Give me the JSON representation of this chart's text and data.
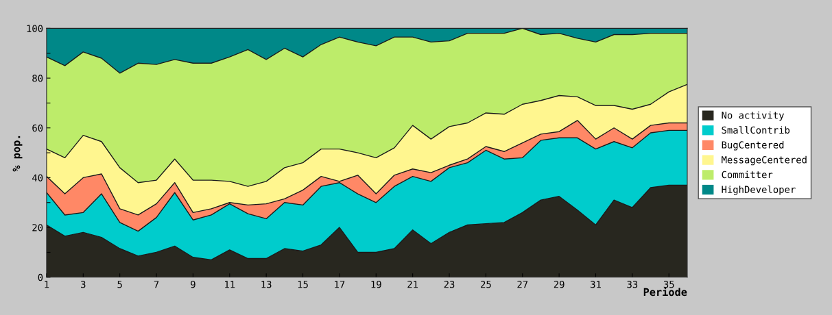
{
  "chart_data": {
    "type": "area",
    "stacked": true,
    "xlabel": "Periode",
    "ylabel": "% pop.",
    "x": [
      1,
      2,
      3,
      4,
      5,
      6,
      7,
      8,
      9,
      10,
      11,
      12,
      13,
      14,
      15,
      16,
      17,
      18,
      19,
      20,
      21,
      22,
      23,
      24,
      25,
      26,
      27,
      28,
      29,
      30,
      31,
      32,
      33,
      34,
      35,
      36
    ],
    "xlim": [
      1,
      36
    ],
    "xticks": [
      1,
      3,
      5,
      7,
      9,
      11,
      13,
      15,
      17,
      19,
      21,
      23,
      25,
      27,
      29,
      31,
      33,
      35
    ],
    "ylim": [
      0,
      100
    ],
    "yticks": [
      0,
      {
        "value": 10,
        "label": null
      },
      20,
      {
        "value": 30,
        "label": null
      },
      40,
      {
        "value": 50,
        "label": null
      },
      60,
      {
        "value": 70,
        "label": null
      },
      80,
      {
        "value": 90,
        "label": null
      },
      100
    ],
    "grid": false,
    "legend": "right",
    "series": [
      {
        "name": "No activity",
        "color": "#28271f",
        "values": [
          21,
          16.5,
          18,
          16,
          11.5,
          8.5,
          10,
          12.5,
          8,
          7,
          11,
          7.5,
          7.5,
          11.5,
          10.5,
          13,
          20,
          10,
          10,
          11.5,
          19,
          13.5,
          18,
          21,
          21.5,
          22,
          26,
          31,
          32.5,
          27,
          21,
          31,
          28,
          36,
          37,
          37
        ]
      },
      {
        "name": "SmallContrib",
        "color": "#00cccc",
        "values": [
          13,
          8.5,
          8,
          17.5,
          10.5,
          10,
          14,
          21.5,
          15,
          18,
          18.5,
          18,
          16,
          18.5,
          18.5,
          23.5,
          18,
          23.5,
          20,
          25,
          21.5,
          25,
          26,
          25,
          29.5,
          25.5,
          22,
          24,
          23.5,
          29,
          30.5,
          23.5,
          24,
          22,
          22,
          22
        ]
      },
      {
        "name": "BugCentered",
        "color": "#ff8866",
        "values": [
          6.5,
          8.5,
          14,
          8,
          5.5,
          6.5,
          5.5,
          4,
          3,
          2.5,
          0.5,
          3.5,
          6,
          1.5,
          6,
          4,
          0.5,
          7.5,
          3.5,
          4.5,
          3,
          3.5,
          1,
          1.5,
          1.5,
          3,
          6,
          2.5,
          2.5,
          7,
          4,
          5.5,
          3.5,
          3,
          3,
          3
        ]
      },
      {
        "name": "MessageCentered",
        "color": "#fff68f",
        "values": [
          11,
          14.5,
          17,
          13,
          16.5,
          13,
          9.5,
          9.5,
          13,
          11.5,
          8.5,
          7.5,
          9,
          12.5,
          11,
          11,
          13,
          9,
          14.5,
          11,
          17.5,
          13.5,
          15.5,
          14.5,
          13.5,
          15,
          15.5,
          13.5,
          14.5,
          9.5,
          13.5,
          9,
          12,
          8.5,
          12.5,
          15.5
        ]
      },
      {
        "name": "Committer",
        "color": "#bdec6a",
        "values": [
          37,
          37,
          33.5,
          33.5,
          38,
          48,
          46.5,
          40,
          47,
          47,
          50,
          55,
          49,
          48,
          42.5,
          42,
          45,
          44.5,
          45,
          44.5,
          35.5,
          39,
          34.5,
          36,
          32,
          32.5,
          30.5,
          26.5,
          25,
          23.5,
          25.5,
          28.5,
          30,
          28.5,
          23.5,
          20.5
        ]
      },
      {
        "name": "HighDeveloper",
        "color": "#008888",
        "values": [
          11.5,
          15,
          9.5,
          12,
          18,
          14,
          14.5,
          12.5,
          14,
          14,
          11.5,
          8.5,
          12.5,
          8,
          11.5,
          6.5,
          3.5,
          5.5,
          7,
          3.5,
          3.5,
          5.5,
          5,
          2,
          2,
          2,
          0,
          2.5,
          2,
          4,
          5.5,
          2.5,
          2.5,
          2,
          2,
          2
        ]
      }
    ]
  }
}
